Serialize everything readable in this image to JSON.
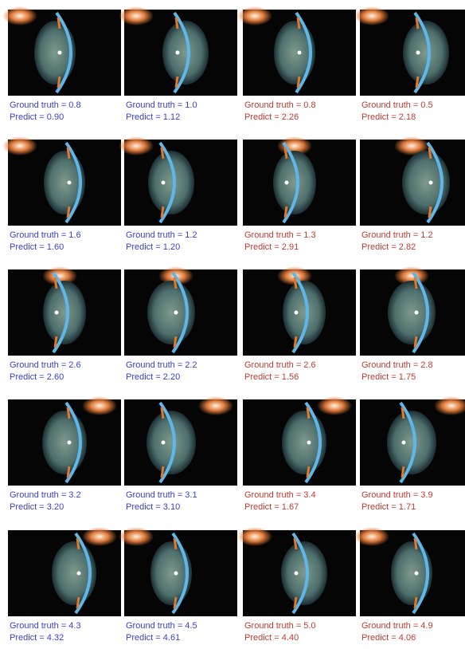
{
  "figure": {
    "cells": [
      [
        {
          "ground_truth": "Ground truth = 0.8",
          "predict": "Predict = 0.90",
          "color": "#3a3fcf"
        },
        {
          "ground_truth": "Ground truth = 1.0",
          "predict": "Predict = 1.12",
          "color": "#3a3fcf"
        },
        {
          "ground_truth": "Ground truth = 0.8",
          "predict": "Predict = 2.26",
          "color": "#c43a2e"
        },
        {
          "ground_truth": "Ground truth = 0.5",
          "predict": "Predict = 2.18",
          "color": "#c43a2e"
        }
      ],
      [
        {
          "ground_truth": "Ground truth = 1.6",
          "predict": "Predict = 1.60",
          "color": "#3a3fcf"
        },
        {
          "ground_truth": "Ground truth = 1.2",
          "predict": "Predict = 1.20",
          "color": "#3a3fcf"
        },
        {
          "ground_truth": "Ground truth = 1.3",
          "predict": "Predict = 2.91",
          "color": "#c43a2e"
        },
        {
          "ground_truth": "Ground truth = 1.2",
          "predict": "Predict = 2.82",
          "color": "#c43a2e"
        }
      ],
      [
        {
          "ground_truth": "Ground truth = 2.6",
          "predict": "Predict  = 2.60",
          "color": "#3a3fcf"
        },
        {
          "ground_truth": "Ground truth = 2.2",
          "predict": "Predict  = 2.20",
          "color": "#3a3fcf"
        },
        {
          "ground_truth": "Ground truth = 2.6",
          "predict": "Predict  = 1.56",
          "color": "#c43a2e"
        },
        {
          "ground_truth": "Ground truth = 2.8",
          "predict": "Predict  = 1.75",
          "color": "#c43a2e"
        }
      ],
      [
        {
          "ground_truth": "Ground truth = 3.2",
          "predict": "Predict = 3.20",
          "color": "#3a3fcf"
        },
        {
          "ground_truth": "Ground truth = 3.1",
          "predict": "Predict = 3.10",
          "color": "#3a3fcf"
        },
        {
          "ground_truth": "Ground truth = 3.4",
          "predict": "Predict = 1.67",
          "color": "#c43a2e"
        },
        {
          "ground_truth": "Ground truth = 3.9",
          "predict": "Predict = 1.71",
          "color": "#c43a2e"
        }
      ],
      [
        {
          "ground_truth": "Ground truth = 4.3",
          "predict": "Predict = 4.32",
          "color": "#3a3fcf"
        },
        {
          "ground_truth": "Ground truth = 4.5",
          "predict": "Predict = 4.61",
          "color": "#3a3fcf"
        },
        {
          "ground_truth": "Ground truth = 5.0",
          "predict": "Predict = 4.40",
          "color": "#c43a2e"
        },
        {
          "ground_truth": "Ground truth = 4.9",
          "predict": "Predict = 4.06",
          "color": "#c43a2e"
        }
      ]
    ]
  }
}
